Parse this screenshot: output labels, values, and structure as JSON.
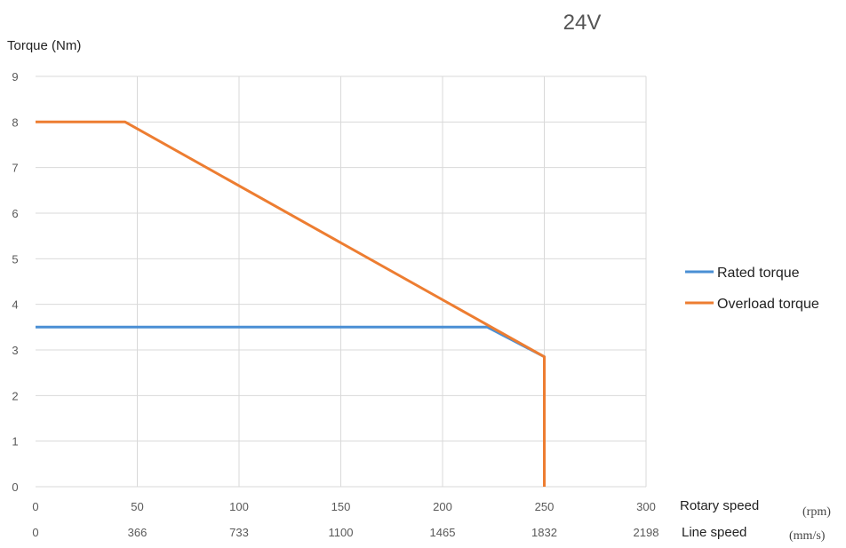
{
  "chart_data": {
    "type": "line",
    "title": "24V",
    "ylabel": "Torque (Nm)",
    "ylim": [
      0,
      9
    ],
    "yticks": [
      0,
      1,
      2,
      3,
      4,
      5,
      6,
      7,
      8,
      9
    ],
    "xlim": [
      0,
      300
    ],
    "xticks": [
      0,
      50,
      100,
      150,
      200,
      250,
      300
    ],
    "xlabel": "Rotary speed",
    "xunit": "(rpm)",
    "secondary_x": {
      "label": "Line speed",
      "unit": "(mm/s)",
      "ticks": [
        "0",
        "366",
        "733",
        "1100",
        "1465",
        "1832",
        "2198"
      ]
    },
    "grid": true,
    "legend_position": "right",
    "series": [
      {
        "name": "Rated torque",
        "color": "#4a8fd4",
        "points": [
          [
            0,
            3.5
          ],
          [
            222,
            3.5
          ],
          [
            250,
            2.85
          ],
          [
            250,
            0
          ]
        ]
      },
      {
        "name": "Overload torque",
        "color": "#ed7d31",
        "points": [
          [
            0,
            8
          ],
          [
            44,
            8
          ],
          [
            250,
            2.85
          ],
          [
            250,
            0
          ]
        ]
      }
    ]
  }
}
